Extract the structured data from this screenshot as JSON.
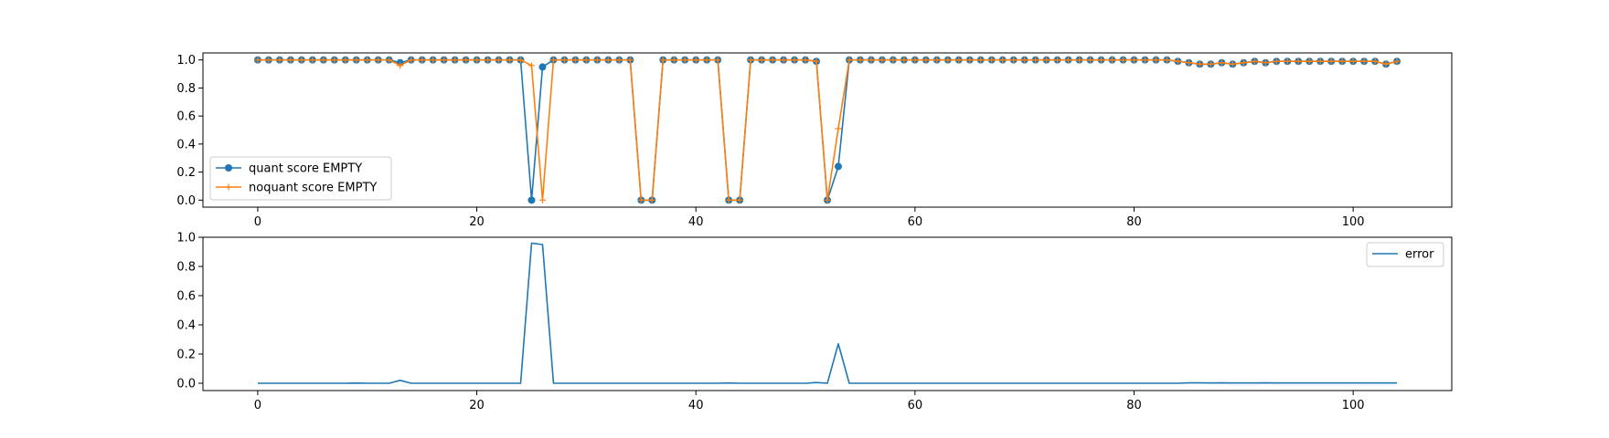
{
  "chart_data": [
    {
      "type": "line",
      "title": "",
      "xlabel": "",
      "ylabel": "",
      "xlim": [
        -5,
        109
      ],
      "ylim": [
        -0.05,
        1.05
      ],
      "xticks": [
        "0",
        "20",
        "40",
        "60",
        "80",
        "100"
      ],
      "yticks": [
        "0.0",
        "0.2",
        "0.4",
        "0.6",
        "0.8",
        "1.0"
      ],
      "grid": false,
      "legend_position": "lower-left",
      "x": [
        0,
        1,
        2,
        3,
        4,
        5,
        6,
        7,
        8,
        9,
        10,
        11,
        12,
        13,
        14,
        15,
        16,
        17,
        18,
        19,
        20,
        21,
        22,
        23,
        24,
        25,
        26,
        27,
        28,
        29,
        30,
        31,
        32,
        33,
        34,
        35,
        36,
        37,
        38,
        39,
        40,
        41,
        42,
        43,
        44,
        45,
        46,
        47,
        48,
        49,
        50,
        51,
        52,
        53,
        54,
        55,
        56,
        57,
        58,
        59,
        60,
        61,
        62,
        63,
        64,
        65,
        66,
        67,
        68,
        69,
        70,
        71,
        72,
        73,
        74,
        75,
        76,
        77,
        78,
        79,
        80,
        81,
        82,
        83,
        84,
        85,
        86,
        87,
        88,
        89,
        90,
        91,
        92,
        93,
        94,
        95,
        96,
        97,
        98,
        99,
        100,
        101,
        102,
        103,
        104
      ],
      "series": [
        {
          "name": "quant score EMPTY",
          "color": "#1f77b4",
          "marker": "circle",
          "values": [
            1,
            1,
            1,
            1,
            1,
            1,
            1,
            1,
            1,
            1,
            1,
            1,
            1,
            0.98,
            1,
            1,
            1,
            1,
            1,
            1,
            1,
            1,
            1,
            1,
            1,
            0.0,
            0.95,
            1,
            1,
            1,
            1,
            1,
            1,
            1,
            1,
            0.0,
            0.0,
            1,
            1,
            1,
            1,
            1,
            1,
            0.0,
            0.0,
            1,
            1,
            1,
            1,
            1,
            1,
            0.99,
            0.0,
            0.24,
            1,
            1,
            1,
            1,
            1,
            1,
            1,
            1,
            1,
            1,
            1,
            1,
            1,
            1,
            1,
            1,
            1,
            1,
            1,
            1,
            1,
            1,
            1,
            1,
            1,
            1,
            1,
            1,
            1,
            1,
            0.99,
            0.98,
            0.97,
            0.97,
            0.98,
            0.97,
            0.98,
            0.99,
            0.98,
            0.99,
            0.99,
            0.99,
            0.99,
            0.99,
            0.99,
            0.99,
            0.99,
            0.99,
            0.99,
            0.97,
            0.99
          ]
        },
        {
          "name": "noquant score EMPTY",
          "color": "#ff7f0e",
          "marker": "plus",
          "values": [
            1,
            1,
            1,
            1,
            1,
            1,
            1,
            1,
            1,
            1,
            1,
            1,
            1,
            0.96,
            1,
            1,
            1,
            1,
            1,
            1,
            1,
            1,
            1,
            1,
            1,
            0.96,
            0.0,
            1,
            1,
            1,
            1,
            1,
            1,
            1,
            1,
            0.0,
            0.0,
            1,
            1,
            1,
            1,
            1,
            1,
            0.0,
            0.0,
            1,
            1,
            1,
            1,
            1,
            1,
            0.99,
            0.0,
            0.51,
            1,
            1,
            1,
            1,
            1,
            1,
            1,
            1,
            1,
            1,
            1,
            1,
            1,
            1,
            1,
            1,
            1,
            1,
            1,
            1,
            1,
            1,
            1,
            1,
            1,
            1,
            1,
            1,
            1,
            1,
            0.99,
            0.98,
            0.97,
            0.97,
            0.98,
            0.97,
            0.98,
            0.99,
            0.98,
            0.99,
            0.99,
            0.99,
            0.99,
            0.99,
            0.99,
            0.99,
            0.99,
            0.99,
            0.99,
            0.97,
            0.99
          ]
        }
      ]
    },
    {
      "type": "line",
      "title": "",
      "xlabel": "",
      "ylabel": "",
      "xlim": [
        -5,
        109
      ],
      "ylim": [
        -0.05,
        1.0
      ],
      "xticks": [
        "0",
        "20",
        "40",
        "60",
        "80",
        "100"
      ],
      "yticks": [
        "0.0",
        "0.2",
        "0.4",
        "0.6",
        "0.8",
        "1.0"
      ],
      "grid": false,
      "legend_position": "upper-right",
      "x": [
        0,
        1,
        2,
        3,
        4,
        5,
        6,
        7,
        8,
        9,
        10,
        11,
        12,
        13,
        14,
        15,
        16,
        17,
        18,
        19,
        20,
        21,
        22,
        23,
        24,
        25,
        26,
        27,
        28,
        29,
        30,
        31,
        32,
        33,
        34,
        35,
        36,
        37,
        38,
        39,
        40,
        41,
        42,
        43,
        44,
        45,
        46,
        47,
        48,
        49,
        50,
        51,
        52,
        53,
        54,
        55,
        56,
        57,
        58,
        59,
        60,
        61,
        62,
        63,
        64,
        65,
        66,
        67,
        68,
        69,
        70,
        71,
        72,
        73,
        74,
        75,
        76,
        77,
        78,
        79,
        80,
        81,
        82,
        83,
        84,
        85,
        86,
        87,
        88,
        89,
        90,
        91,
        92,
        93,
        94,
        95,
        96,
        97,
        98,
        99,
        100,
        101,
        102,
        103,
        104
      ],
      "series": [
        {
          "name": "error",
          "color": "#1f77b4",
          "marker": "none",
          "values": [
            0,
            0,
            0,
            0,
            0,
            0,
            0,
            0,
            0,
            0.001,
            0,
            0,
            0,
            0.02,
            0,
            0,
            0,
            0,
            0,
            0,
            0,
            0,
            0,
            0,
            0,
            0.96,
            0.95,
            0,
            0,
            0,
            0,
            0,
            0,
            0,
            0,
            0,
            0,
            0,
            0,
            0,
            0,
            0,
            0,
            0.002,
            0,
            0,
            0,
            0,
            0,
            0,
            0,
            0.005,
            0,
            0.27,
            0,
            0,
            0,
            0,
            0,
            0,
            0,
            0,
            0,
            0,
            0,
            0,
            0,
            0,
            0,
            0,
            0,
            0,
            0,
            0,
            0,
            0,
            0,
            0,
            0,
            0,
            0,
            0,
            0,
            0,
            0,
            0.003,
            0.003,
            0.002,
            0.003,
            0.002,
            0.002,
            0.002,
            0.003,
            0.002,
            0.002,
            0.002,
            0.002,
            0.002,
            0.002,
            0.002,
            0.002,
            0.002,
            0.002,
            0.002,
            0.002
          ]
        }
      ]
    }
  ]
}
